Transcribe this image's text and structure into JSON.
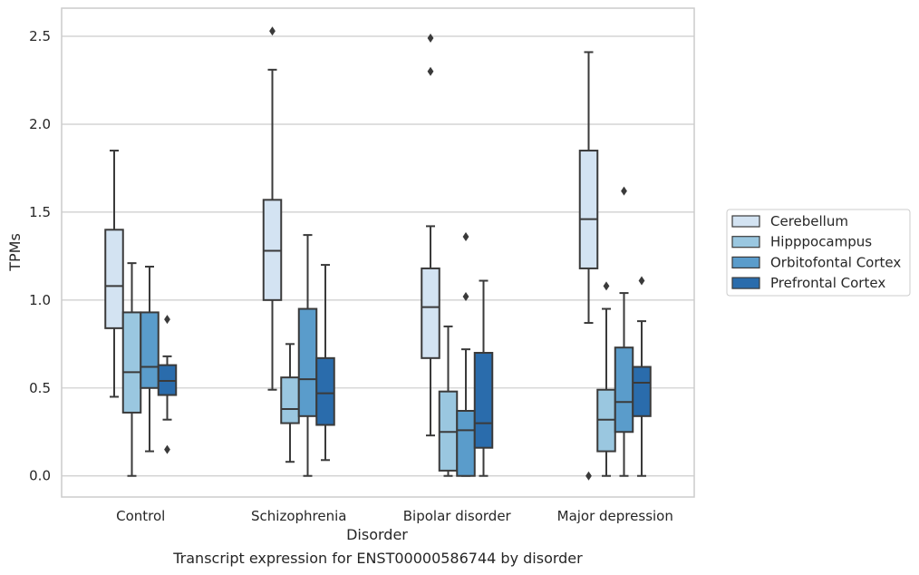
{
  "caption": "Transcript expression for ENST00000586744 by disorder",
  "chart_data": {
    "type": "boxplot",
    "xlabel": "Disorder",
    "ylabel": "TPMs",
    "ylim": [
      -0.12,
      2.66
    ],
    "yticks": [
      0.0,
      0.5,
      1.0,
      1.5,
      2.0,
      2.5
    ],
    "ytick_labels": [
      "0.0",
      "0.5",
      "1.0",
      "1.5",
      "2.0",
      "2.5"
    ],
    "grid": "horizontal",
    "legend_position": "right",
    "categories": [
      "Control",
      "Schizophrenia",
      "Bipolar disorder",
      "Major depression"
    ],
    "series": [
      {
        "name": "Cerebellum",
        "color": "#d3e3f2",
        "boxes": [
          {
            "whislo": 0.45,
            "q1": 0.84,
            "med": 1.08,
            "q3": 1.4,
            "whishi": 1.85,
            "fliers": []
          },
          {
            "whislo": 0.49,
            "q1": 1.0,
            "med": 1.28,
            "q3": 1.57,
            "whishi": 2.31,
            "fliers": [
              2.53
            ]
          },
          {
            "whislo": 0.23,
            "q1": 0.67,
            "med": 0.96,
            "q3": 1.18,
            "whishi": 1.42,
            "fliers": [
              2.49,
              2.3
            ]
          },
          {
            "whislo": 0.87,
            "q1": 1.18,
            "med": 1.46,
            "q3": 1.85,
            "whishi": 2.41,
            "fliers": [
              0.0
            ]
          }
        ]
      },
      {
        "name": "Hipppocampus",
        "color": "#9ac7e0",
        "boxes": [
          {
            "whislo": 0.0,
            "q1": 0.36,
            "med": 0.59,
            "q3": 0.93,
            "whishi": 1.21,
            "fliers": []
          },
          {
            "whislo": 0.08,
            "q1": 0.3,
            "med": 0.38,
            "q3": 0.56,
            "whishi": 0.75,
            "fliers": []
          },
          {
            "whislo": 0.0,
            "q1": 0.03,
            "med": 0.25,
            "q3": 0.48,
            "whishi": 0.85,
            "fliers": []
          },
          {
            "whislo": 0.0,
            "q1": 0.14,
            "med": 0.32,
            "q3": 0.49,
            "whishi": 0.95,
            "fliers": [
              1.08
            ]
          }
        ]
      },
      {
        "name": "Orbitofontal Cortex",
        "color": "#5a9ccb",
        "boxes": [
          {
            "whislo": 0.14,
            "q1": 0.5,
            "med": 0.62,
            "q3": 0.93,
            "whishi": 1.19,
            "fliers": []
          },
          {
            "whislo": 0.0,
            "q1": 0.34,
            "med": 0.55,
            "q3": 0.95,
            "whishi": 1.37,
            "fliers": []
          },
          {
            "whislo": 0.0,
            "q1": 0.0,
            "med": 0.26,
            "q3": 0.37,
            "whishi": 0.72,
            "fliers": [
              1.02,
              1.36
            ]
          },
          {
            "whislo": 0.0,
            "q1": 0.25,
            "med": 0.42,
            "q3": 0.73,
            "whishi": 1.04,
            "fliers": [
              1.62
            ]
          }
        ]
      },
      {
        "name": "Prefrontal Cortex",
        "color": "#2a6cac",
        "boxes": [
          {
            "whislo": 0.32,
            "q1": 0.46,
            "med": 0.54,
            "q3": 0.63,
            "whishi": 0.68,
            "fliers": [
              0.89,
              0.15
            ]
          },
          {
            "whislo": 0.09,
            "q1": 0.29,
            "med": 0.47,
            "q3": 0.67,
            "whishi": 1.2,
            "fliers": []
          },
          {
            "whislo": 0.0,
            "q1": 0.16,
            "med": 0.3,
            "q3": 0.7,
            "whishi": 1.11,
            "fliers": []
          },
          {
            "whislo": 0.0,
            "q1": 0.34,
            "med": 0.53,
            "q3": 0.62,
            "whishi": 0.88,
            "fliers": [
              1.11
            ]
          }
        ]
      }
    ]
  }
}
